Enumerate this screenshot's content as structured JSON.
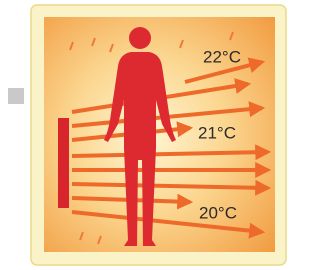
{
  "temperatures": [
    "22°C",
    "21°C",
    "20°C"
  ]
}
